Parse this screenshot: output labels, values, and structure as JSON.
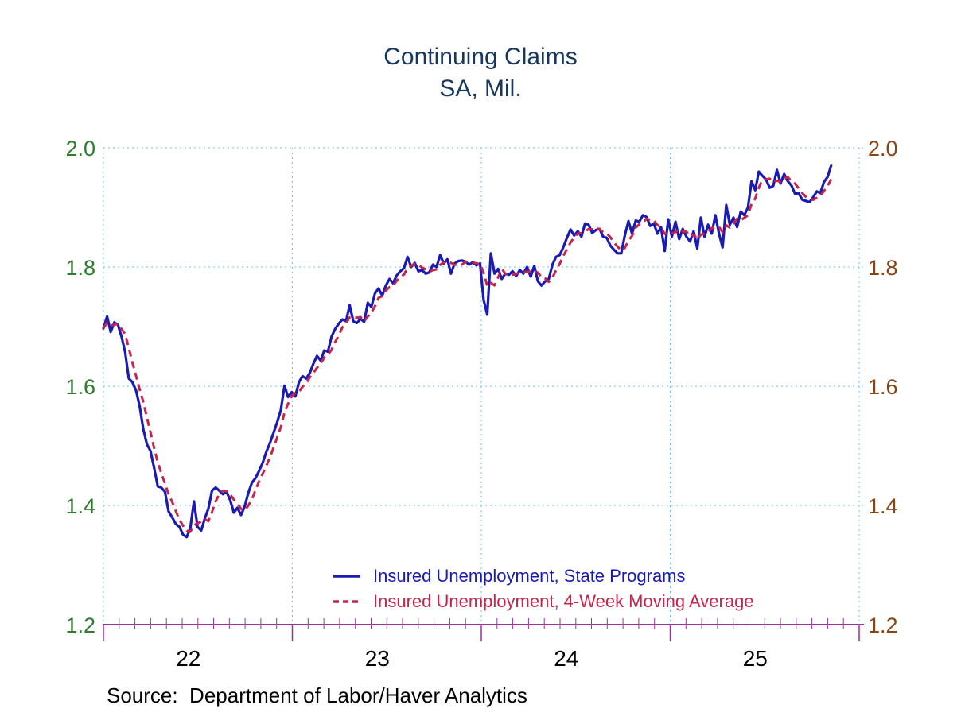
{
  "title": {
    "line1": "Continuing Claims",
    "line2": "SA, Mil."
  },
  "source_note": "Source:  Department of Labor/Haver Analytics",
  "colors": {
    "background": "#ffffff",
    "title_text": "#17375e",
    "left_axis_labels": "#2e7d2e",
    "right_axis_labels": "#8b4513",
    "x_axis_labels": "#000000",
    "axis_line": "#993399",
    "gridlines": "#63c6e7",
    "source_text": "#000000"
  },
  "chart_data": {
    "type": "line",
    "title": "Continuing Claims",
    "subtitle": "SA, Mil.",
    "ylabel": "",
    "xlabel": "",
    "ylim": [
      1.2,
      2.0
    ],
    "y_ticks": [
      1.2,
      1.4,
      1.6,
      1.8,
      2.0
    ],
    "y_tick_labels": [
      "1.2",
      "1.4",
      "1.6",
      "1.8",
      "2.0"
    ],
    "y_axis_labels_on_both_sides": true,
    "grid": true,
    "x_axis": {
      "year_labels": [
        "22",
        "23",
        "24",
        "25"
      ],
      "minor_ticks": "monthly",
      "start": "Jan 2022",
      "frequency": "weekly"
    },
    "legend_position": "inside-bottom-center",
    "series": [
      {
        "name": "Insured Unemployment, State Programs",
        "color": "#1a1ab4",
        "style": "solid",
        "values": [
          1.697,
          1.717,
          1.691,
          1.707,
          1.703,
          1.683,
          1.657,
          1.613,
          1.607,
          1.593,
          1.567,
          1.528,
          1.503,
          1.491,
          1.463,
          1.432,
          1.43,
          1.423,
          1.39,
          1.38,
          1.369,
          1.364,
          1.351,
          1.347,
          1.362,
          1.407,
          1.364,
          1.358,
          1.378,
          1.395,
          1.425,
          1.43,
          1.425,
          1.419,
          1.423,
          1.409,
          1.388,
          1.396,
          1.384,
          1.398,
          1.421,
          1.438,
          1.446,
          1.458,
          1.472,
          1.49,
          1.505,
          1.522,
          1.54,
          1.56,
          1.601,
          1.582,
          1.59,
          1.583,
          1.607,
          1.617,
          1.613,
          1.622,
          1.638,
          1.651,
          1.643,
          1.66,
          1.658,
          1.683,
          1.696,
          1.705,
          1.712,
          1.709,
          1.736,
          1.709,
          1.706,
          1.713,
          1.708,
          1.74,
          1.733,
          1.756,
          1.764,
          1.752,
          1.769,
          1.78,
          1.773,
          1.786,
          1.793,
          1.798,
          1.817,
          1.8,
          1.807,
          1.793,
          1.795,
          1.789,
          1.791,
          1.804,
          1.8,
          1.82,
          1.806,
          1.813,
          1.789,
          1.806,
          1.81,
          1.811,
          1.809,
          1.804,
          1.808,
          1.803,
          1.806,
          1.745,
          1.72,
          1.823,
          1.789,
          1.797,
          1.78,
          1.789,
          1.787,
          1.793,
          1.785,
          1.795,
          1.789,
          1.8,
          1.784,
          1.802,
          1.776,
          1.769,
          1.776,
          1.78,
          1.804,
          1.817,
          1.82,
          1.833,
          1.849,
          1.863,
          1.853,
          1.86,
          1.851,
          1.873,
          1.871,
          1.857,
          1.862,
          1.864,
          1.851,
          1.849,
          1.836,
          1.829,
          1.823,
          1.823,
          1.853,
          1.877,
          1.856,
          1.878,
          1.876,
          1.887,
          1.884,
          1.869,
          1.873,
          1.856,
          1.867,
          1.827,
          1.88,
          1.851,
          1.876,
          1.847,
          1.864,
          1.851,
          1.843,
          1.86,
          1.831,
          1.883,
          1.851,
          1.871,
          1.856,
          1.887,
          1.856,
          1.833,
          1.904,
          1.871,
          1.883,
          1.867,
          1.893,
          1.887,
          1.9,
          1.944,
          1.929,
          1.96,
          1.953,
          1.947,
          1.933,
          1.936,
          1.963,
          1.94,
          1.956,
          1.944,
          1.937,
          1.923,
          1.924,
          1.913,
          1.911,
          1.909,
          1.917,
          1.927,
          1.924,
          1.943,
          1.951,
          1.971
        ]
      },
      {
        "name": "Insured Unemployment, 4-Week Moving Average",
        "color": "#c8234a",
        "style": "dashed",
        "derived": "4-week trailing moving average of first series"
      }
    ]
  }
}
